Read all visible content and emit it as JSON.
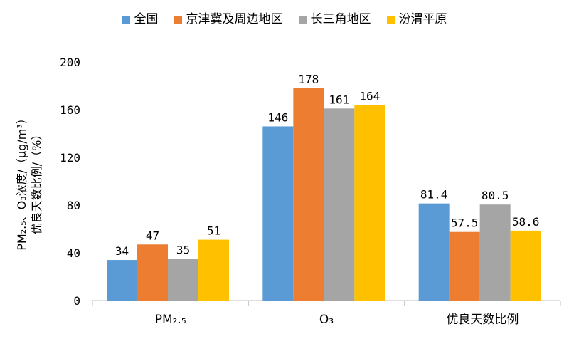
{
  "chart_data": {
    "type": "bar",
    "categories": [
      "PM₂.₅",
      "O₃",
      "优良天数比例"
    ],
    "series": [
      {
        "name": "全国",
        "values": [
          34,
          146,
          81.4
        ],
        "color": "#5b9bd5"
      },
      {
        "name": "京津冀及周边地区",
        "values": [
          47,
          178,
          57.5
        ],
        "color": "#ed7d31"
      },
      {
        "name": "长三角地区",
        "values": [
          35,
          161,
          80.5
        ],
        "color": "#a5a5a5"
      },
      {
        "name": "汾渭平原",
        "values": [
          51,
          164,
          58.6
        ],
        "color": "#ffc000"
      }
    ],
    "ylabel_line1": "PM₂.₅、O₃浓度/（μg/m³）",
    "ylabel_line2": "优良天数比例/（%）",
    "ylim": [
      0,
      200
    ],
    "yticks": [
      0,
      40,
      80,
      120,
      160,
      200
    ],
    "grid": false,
    "legend_position": "top"
  }
}
